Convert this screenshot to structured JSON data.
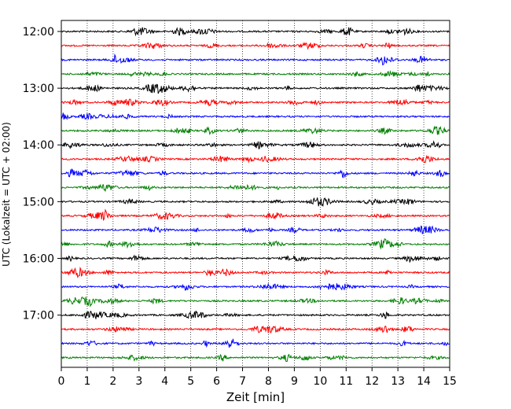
{
  "chart_data": {
    "type": "line",
    "title": "",
    "xlabel": "Zeit  [min]",
    "ylabel": "UTC (Lokalzeit = UTC + 02:00)",
    "xlim": [
      0,
      15
    ],
    "x_ticks": [
      0,
      1,
      2,
      3,
      4,
      5,
      6,
      7,
      8,
      9,
      10,
      11,
      12,
      13,
      14,
      15
    ],
    "x_tick_labels": [
      "0",
      "1",
      "2",
      "3",
      "4",
      "5",
      "6",
      "7",
      "8",
      "9",
      "10",
      "11",
      "12",
      "13",
      "14",
      "15"
    ],
    "y_tick_labels": [
      "12:00",
      "13:00",
      "14:00",
      "15:00",
      "16:00",
      "17:00"
    ],
    "y_tick_rows": [
      0,
      4,
      8,
      12,
      16,
      20
    ],
    "grid": "vertical-dotted",
    "trace_colors": [
      "#000000",
      "#ff0000",
      "#0000ff",
      "#008000"
    ],
    "series": [
      {
        "start": "12:00"
      },
      {
        "start": "12:15"
      },
      {
        "start": "12:30"
      },
      {
        "start": "12:45"
      },
      {
        "start": "13:00"
      },
      {
        "start": "13:15"
      },
      {
        "start": "13:30"
      },
      {
        "start": "13:45"
      },
      {
        "start": "14:00"
      },
      {
        "start": "14:15"
      },
      {
        "start": "14:30"
      },
      {
        "start": "14:45"
      },
      {
        "start": "15:00"
      },
      {
        "start": "15:15"
      },
      {
        "start": "15:30"
      },
      {
        "start": "15:45"
      },
      {
        "start": "16:00"
      },
      {
        "start": "16:15"
      },
      {
        "start": "16:30"
      },
      {
        "start": "16:45"
      },
      {
        "start": "17:00"
      },
      {
        "start": "17:15"
      },
      {
        "start": "17:30"
      },
      {
        "start": "17:45"
      }
    ]
  }
}
